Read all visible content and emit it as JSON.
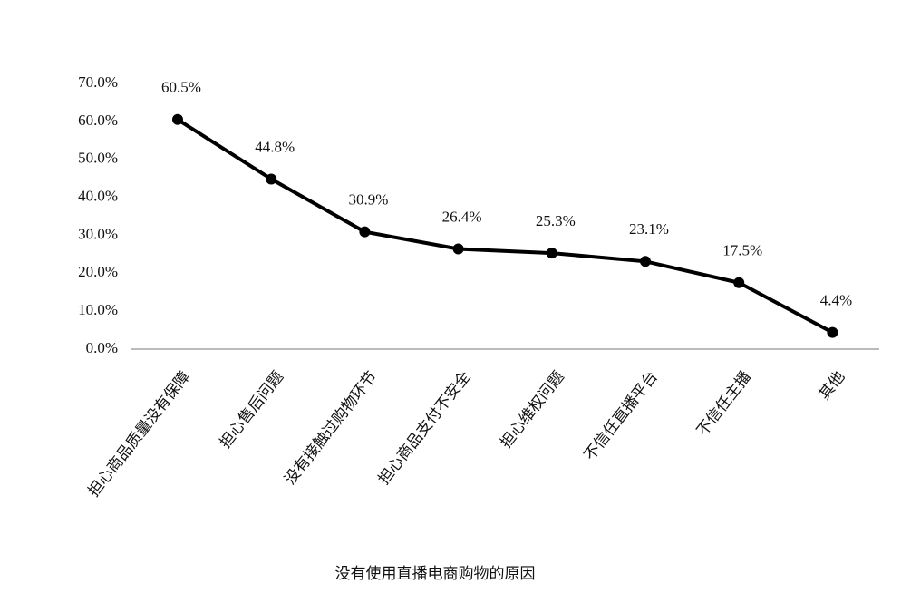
{
  "chart_data": {
    "type": "line",
    "x_label": "没有使用直播电商购物的原因",
    "categories": [
      "担心商品质量没有保障",
      "担心售后问题",
      "没有接触过购物环节",
      "担心商品支付不安全",
      "担心维权问题",
      "不信任直播平台",
      "不信任主播",
      "其他"
    ],
    "values": [
      60.5,
      44.8,
      30.9,
      26.4,
      25.3,
      23.1,
      17.5,
      4.4
    ],
    "value_labels": [
      "60.5%",
      "44.8%",
      "30.9%",
      "26.4%",
      "25.3%",
      "23.1%",
      "17.5%",
      "4.4%"
    ],
    "color": "#000000",
    "ylim": [
      0,
      70
    ],
    "yticks": [
      {
        "value": 0,
        "label": "0.0%"
      },
      {
        "value": 10,
        "label": "10.0%"
      },
      {
        "value": 20,
        "label": "20.0%"
      },
      {
        "value": 30,
        "label": "30.0%"
      },
      {
        "value": 40,
        "label": "40.0%"
      },
      {
        "value": 50,
        "label": "50.0%"
      },
      {
        "value": 60,
        "label": "60.0%"
      },
      {
        "value": 70,
        "label": "70.0%"
      }
    ],
    "grid": false
  }
}
